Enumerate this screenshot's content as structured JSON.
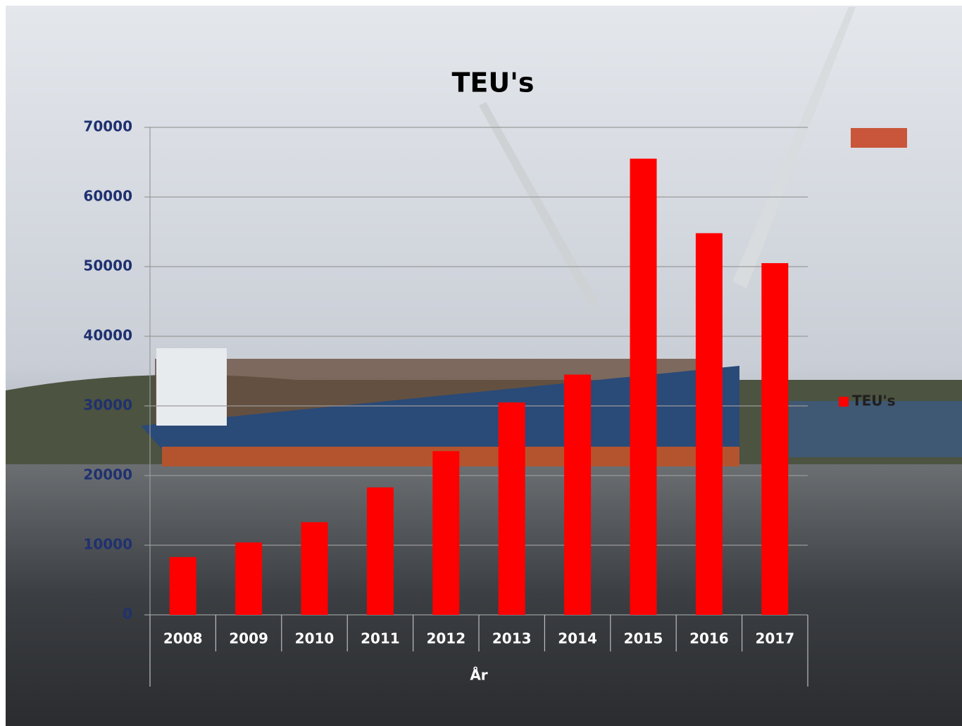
{
  "chart_data": {
    "type": "bar",
    "title": "TEU's",
    "x_label": "År",
    "categories": [
      "2008",
      "2009",
      "2010",
      "2011",
      "2012",
      "2013",
      "2014",
      "2015",
      "2016",
      "2017"
    ],
    "series": [
      {
        "name": "TEU's",
        "color": "#ff0000",
        "values": [
          8300,
          10400,
          13300,
          18300,
          23500,
          30500,
          34500,
          65500,
          54800,
          50500
        ]
      }
    ],
    "ylim": [
      0,
      70000
    ],
    "yticks": [
      0,
      10000,
      20000,
      30000,
      40000,
      50000,
      60000,
      70000
    ],
    "grid": true,
    "legend": "right"
  }
}
